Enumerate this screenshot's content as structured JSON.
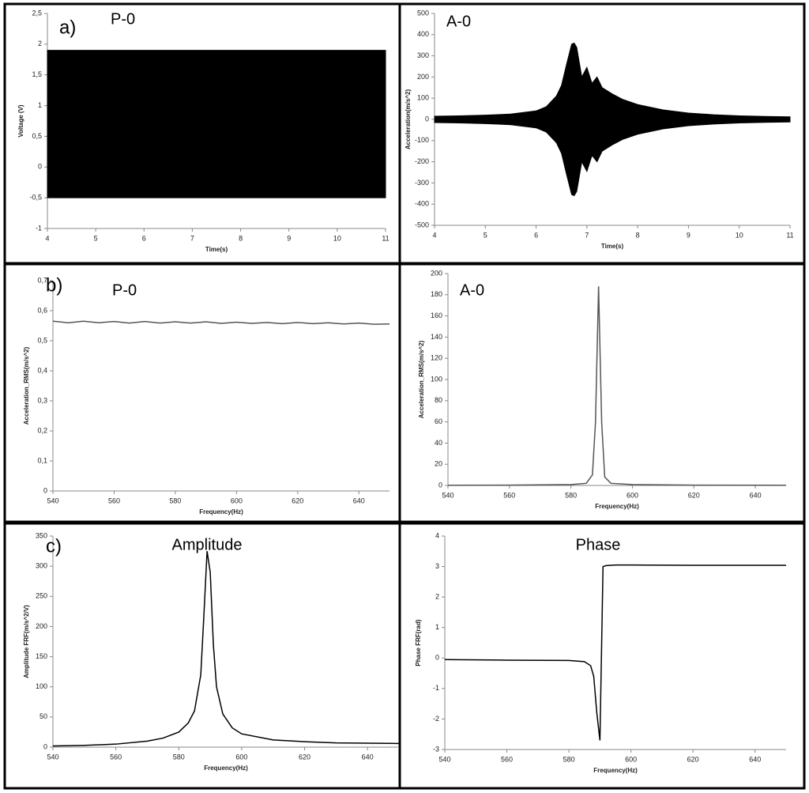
{
  "chart_data": [
    {
      "type": "area",
      "panel_label": "a)",
      "title": "P-0",
      "x_label": "Time(s)",
      "y_label": "Voltage (V)",
      "color": "#000000",
      "x": [
        4,
        11
      ],
      "upper": [
        1.9,
        1.9
      ],
      "lower": [
        -0.5,
        -0.5
      ],
      "xlim": [
        4,
        11
      ],
      "xticks": [
        4,
        5,
        6,
        7,
        8,
        9,
        10,
        11
      ],
      "ylim": [
        -1,
        2.5
      ],
      "yticks": [
        -1,
        {
          "value": -0.5,
          "label": "-0,5"
        },
        0,
        {
          "value": 0.5,
          "label": "0,5"
        },
        1,
        {
          "value": 1.5,
          "label": "1,5"
        },
        2,
        {
          "value": 2.5,
          "label": "2,5"
        }
      ]
    },
    {
      "type": "area",
      "title": "A-0",
      "x_label": "Time(s)",
      "y_label": "Acceleration(m/s^2)",
      "color": "#000000",
      "x": [
        4,
        4.5,
        5,
        5.5,
        6,
        6.2,
        6.4,
        6.5,
        6.6,
        6.7,
        6.75,
        6.8,
        6.9,
        7.0,
        7.1,
        7.2,
        7.3,
        7.5,
        7.7,
        8,
        8.5,
        9,
        9.5,
        10,
        10.5,
        11
      ],
      "upper": [
        15,
        17,
        20,
        25,
        40,
        60,
        110,
        160,
        260,
        355,
        360,
        340,
        200,
        245,
        170,
        200,
        150,
        120,
        95,
        70,
        45,
        30,
        22,
        17,
        14,
        12
      ],
      "lower": [
        -15,
        -17,
        -20,
        -25,
        -40,
        -60,
        -110,
        -160,
        -260,
        -355,
        -360,
        -340,
        -200,
        -245,
        -170,
        -200,
        -150,
        -120,
        -95,
        -70,
        -45,
        -30,
        -22,
        -17,
        -14,
        -12
      ],
      "xlim": [
        4,
        11
      ],
      "xticks": [
        4,
        5,
        6,
        7,
        8,
        9,
        10,
        11
      ],
      "ylim": [
        -500,
        500
      ],
      "yticks": [
        -500,
        -400,
        -300,
        -200,
        -100,
        0,
        100,
        200,
        300,
        400,
        500
      ]
    },
    {
      "type": "line",
      "panel_label": "b)",
      "title": "P-0",
      "x_label": "Frequency(Hz)",
      "y_label": "Acceleration_RMS(m/s^2)",
      "color": "#555555",
      "x": [
        540,
        545,
        550,
        555,
        560,
        565,
        570,
        575,
        580,
        585,
        590,
        595,
        600,
        605,
        610,
        615,
        620,
        625,
        630,
        635,
        640,
        645,
        650
      ],
      "values": [
        0.565,
        0.56,
        0.565,
        0.56,
        0.564,
        0.559,
        0.564,
        0.559,
        0.563,
        0.559,
        0.563,
        0.558,
        0.562,
        0.558,
        0.561,
        0.557,
        0.561,
        0.557,
        0.56,
        0.556,
        0.559,
        0.555,
        0.556
      ],
      "xlim": [
        540,
        650
      ],
      "xticks": [
        540,
        560,
        580,
        600,
        620,
        640
      ],
      "ylim": [
        0,
        0.7
      ],
      "yticks": [
        0,
        {
          "value": 0.1,
          "label": "0,1"
        },
        {
          "value": 0.2,
          "label": "0,2"
        },
        {
          "value": 0.3,
          "label": "0,3"
        },
        {
          "value": 0.4,
          "label": "0,4"
        },
        {
          "value": 0.5,
          "label": "0,5"
        },
        {
          "value": 0.6,
          "label": "0,6"
        },
        {
          "value": 0.7,
          "label": "0,7"
        }
      ]
    },
    {
      "type": "line",
      "title": "A-0",
      "x_label": "Frequency(Hz)",
      "y_label": "Acceleration_RMS(m/s^2)",
      "color": "#555555",
      "x": [
        540,
        560,
        580,
        585,
        587,
        588,
        589,
        590,
        591,
        593,
        600,
        620,
        650
      ],
      "values": [
        0.2,
        0.3,
        0.8,
        2,
        10,
        60,
        188,
        60,
        8,
        2,
        0.8,
        0.3,
        0.2
      ],
      "xlim": [
        540,
        650
      ],
      "xticks": [
        540,
        560,
        580,
        600,
        620,
        640
      ],
      "ylim": [
        0,
        200
      ],
      "yticks": [
        0,
        20,
        40,
        60,
        80,
        100,
        120,
        140,
        160,
        180,
        200
      ]
    },
    {
      "type": "line",
      "panel_label": "c)",
      "title": "Amplitude",
      "x_label": "Frequency(Hz)",
      "y_label": "Amplitude FRF(m/s^2/V)",
      "color": "#000000",
      "x": [
        540,
        550,
        560,
        570,
        575,
        580,
        583,
        585,
        587,
        588,
        589,
        590,
        591,
        592,
        594,
        597,
        600,
        610,
        620,
        630,
        650
      ],
      "values": [
        2,
        3,
        5,
        10,
        15,
        25,
        40,
        60,
        120,
        220,
        325,
        290,
        170,
        100,
        55,
        32,
        22,
        12,
        9,
        7,
        6
      ],
      "xlim": [
        540,
        650
      ],
      "xticks": [
        540,
        560,
        580,
        600,
        620,
        640
      ],
      "ylim": [
        0,
        350
      ],
      "yticks": [
        0,
        50,
        100,
        150,
        200,
        250,
        300,
        350
      ]
    },
    {
      "type": "line",
      "title": "Phase",
      "x_label": "Frequency(Hz)",
      "y_label": "Phase FRF(rad)",
      "color": "#000000",
      "x": [
        540,
        560,
        580,
        585,
        587,
        588,
        589,
        590,
        591,
        592,
        595,
        600,
        620,
        650
      ],
      "values": [
        -0.05,
        -0.07,
        -0.08,
        -0.12,
        -0.25,
        -0.6,
        -1.8,
        -2.7,
        3.0,
        3.03,
        3.05,
        3.05,
        3.04,
        3.04
      ],
      "xlim": [
        540,
        650
      ],
      "xticks": [
        540,
        560,
        580,
        600,
        620,
        640
      ],
      "ylim": [
        -3,
        4
      ],
      "yticks": [
        -3,
        -2,
        -1,
        0,
        1,
        2,
        3,
        4
      ]
    }
  ]
}
